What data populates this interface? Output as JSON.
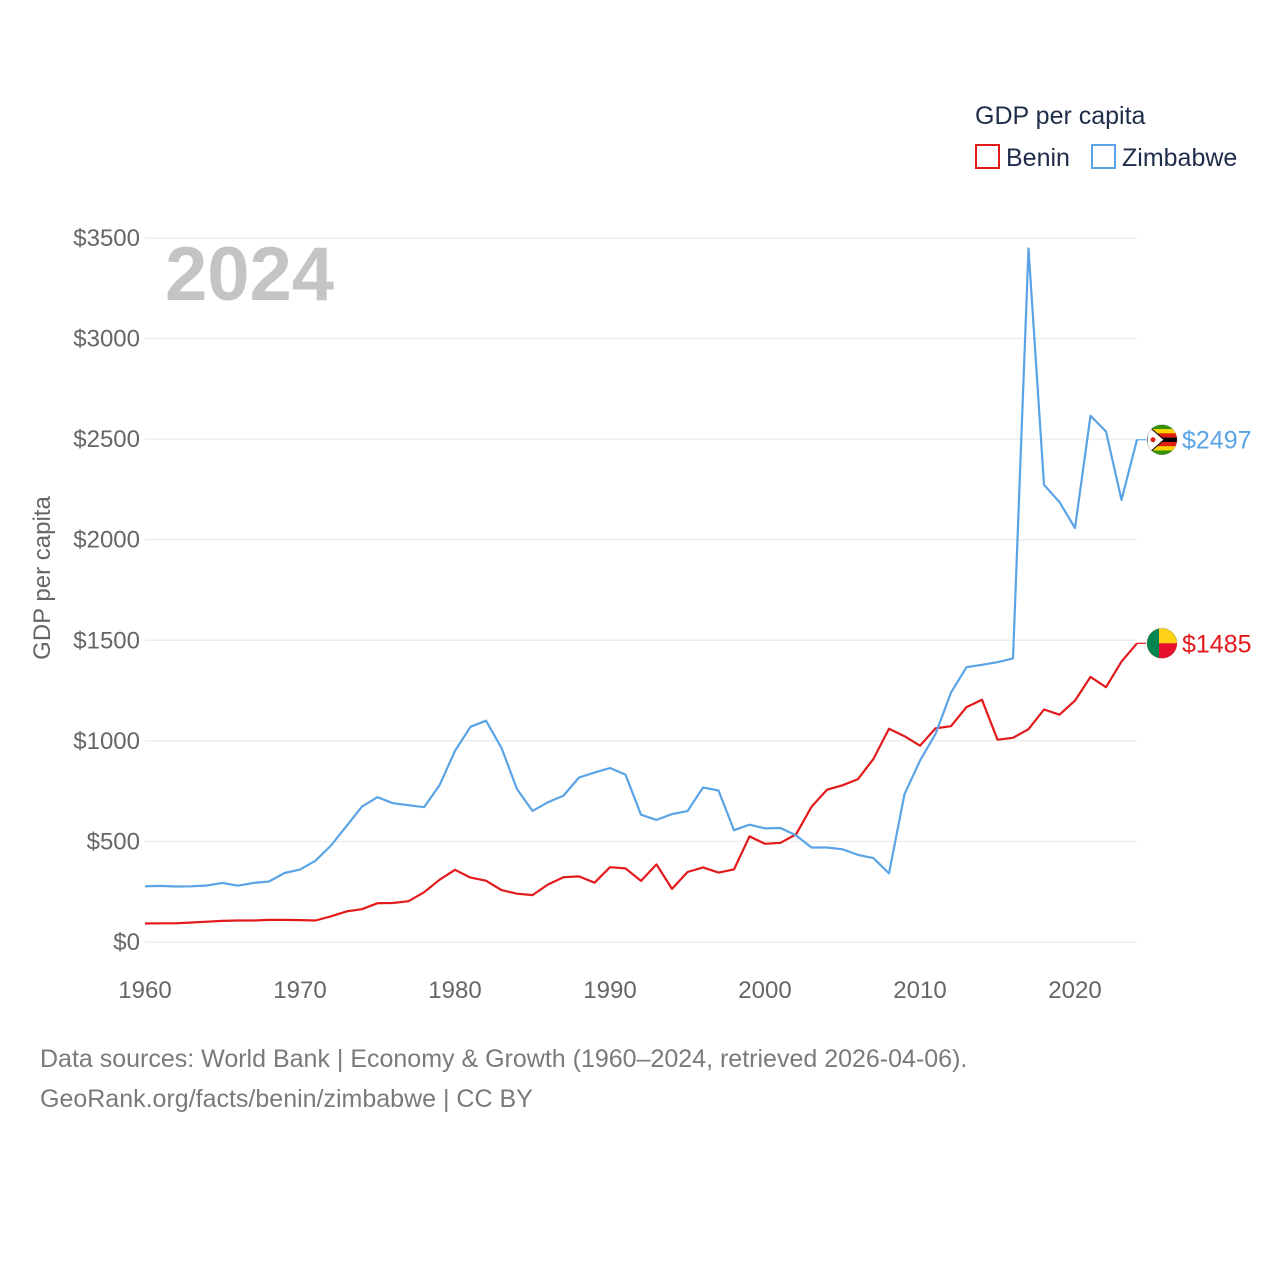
{
  "chart_data": {
    "type": "line",
    "title": "GDP per capita",
    "ylabel": "GDP per capita",
    "xlabel": "",
    "year_label": "2024",
    "xlim": [
      1960,
      2024
    ],
    "ylim": [
      0,
      3500
    ],
    "x_ticks": [
      1960,
      1970,
      1980,
      1990,
      2000,
      2010,
      2020
    ],
    "y_ticks": [
      {
        "value": 0,
        "label": "$0"
      },
      {
        "value": 500,
        "label": "$500"
      },
      {
        "value": 1000,
        "label": "$1000"
      },
      {
        "value": 1500,
        "label": "$1500"
      },
      {
        "value": 2000,
        "label": "$2000"
      },
      {
        "value": 2500,
        "label": "$2500"
      },
      {
        "value": 3000,
        "label": "$3000"
      },
      {
        "value": 3500,
        "label": "$3500"
      }
    ],
    "grid": true,
    "legend": {
      "title": "GDP per capita",
      "position": "top-right"
    },
    "x": [
      1960,
      1961,
      1962,
      1963,
      1964,
      1965,
      1966,
      1967,
      1968,
      1969,
      1970,
      1971,
      1972,
      1973,
      1974,
      1975,
      1976,
      1977,
      1978,
      1979,
      1980,
      1981,
      1982,
      1983,
      1984,
      1985,
      1986,
      1987,
      1988,
      1989,
      1990,
      1991,
      1992,
      1993,
      1994,
      1995,
      1996,
      1997,
      1998,
      1999,
      2000,
      2001,
      2002,
      2003,
      2004,
      2005,
      2006,
      2007,
      2008,
      2009,
      2010,
      2011,
      2012,
      2013,
      2014,
      2015,
      2016,
      2017,
      2018,
      2019,
      2020,
      2021,
      2022,
      2023,
      2024
    ],
    "series": [
      {
        "name": "Benin",
        "color": "#e31a1c",
        "end_label": "$1485",
        "flag": "benin-flag-icon",
        "values": [
          92,
          93,
          93,
          97,
          101,
          105,
          107,
          107,
          110,
          110,
          109,
          107,
          128,
          152,
          163,
          193,
          194,
          203,
          247,
          309,
          359,
          320,
          305,
          258,
          240,
          233,
          286,
          322,
          326,
          295,
          372,
          366,
          304,
          386,
          264,
          348,
          371,
          345,
          361,
          525,
          488,
          493,
          535,
          672,
          757,
          779,
          810,
          911,
          1060,
          1023,
          976,
          1062,
          1073,
          1168,
          1204,
          1006,
          1015,
          1058,
          1156,
          1130,
          1200,
          1318,
          1267,
          1394,
          1485
        ]
      },
      {
        "name": "Zimbabwe",
        "color": "#5aa4e6",
        "end_label": "$2497",
        "flag": "zimbabwe-flag-icon",
        "values": [
          277,
          279,
          276,
          277,
          281,
          294,
          280,
          294,
          301,
          343,
          360,
          404,
          480,
          576,
          673,
          720,
          690,
          680,
          670,
          779,
          950,
          1070,
          1100,
          965,
          760,
          652,
          695,
          728,
          818,
          842,
          865,
          832,
          633,
          607,
          636,
          651,
          768,
          753,
          556,
          583,
          565,
          567,
          530,
          470,
          470,
          461,
          433,
          417,
          341,
          735,
          902,
          1034,
          1240,
          1366,
          1378,
          1391,
          1410,
          3448,
          2273,
          2187,
          2058,
          2616,
          2538,
          2198,
          2497
        ]
      }
    ]
  },
  "footer": {
    "line1": "Data sources: World Bank | Economy & Growth (1960–2024, retrieved 2026-04-06).",
    "line2": "GeoRank.org/facts/benin/zimbabwe | CC BY"
  }
}
